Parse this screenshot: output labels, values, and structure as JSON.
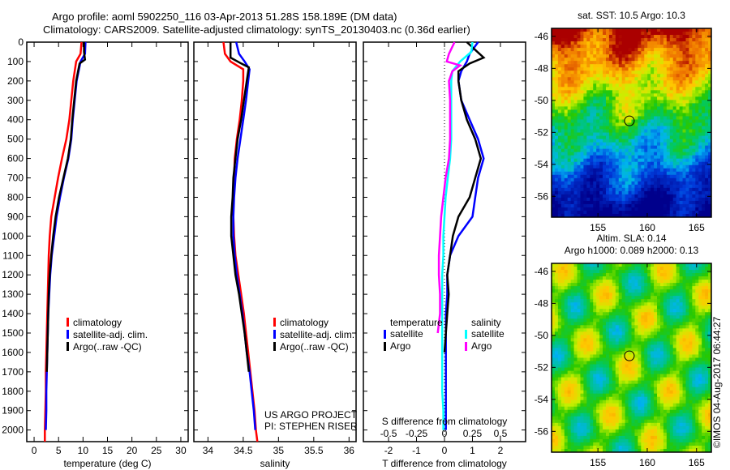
{
  "header": {
    "line1": "Argo profile: aoml 5902250_116 03-Apr-2013 51.28S 158.189E (DM data)",
    "line2": "Climatology: CARS2009. Satellite-adjusted climatology: synTS_20130403.nc (0.36d earlier)"
  },
  "colors": {
    "climatology": "#ff0000",
    "satellite": "#0000ff",
    "argo": "#000000",
    "sal_sat": "#00ffff",
    "sal_argo": "#ff00ff"
  },
  "chart_data": [
    {
      "type": "line",
      "name": "temperature-profile",
      "xlabel": "temperature (deg C)",
      "ylabel": "",
      "xlim": [
        -1.5,
        31.5
      ],
      "ylim": [
        2060,
        0
      ],
      "xticks": [
        0,
        5,
        10,
        15,
        20,
        25,
        30
      ],
      "yticks": [
        0,
        100,
        200,
        300,
        400,
        500,
        600,
        700,
        800,
        900,
        1000,
        1100,
        1200,
        1300,
        1400,
        1500,
        1600,
        1700,
        1800,
        1900,
        2000
      ],
      "legend": [
        "climatology",
        "satellite-adj. clim.",
        "Argo(..raw -QC)"
      ],
      "series": [
        {
          "name": "climatology",
          "color": "#ff0000",
          "depth": [
            0,
            60,
            100,
            200,
            300,
            400,
            500,
            600,
            700,
            800,
            900,
            1000,
            1100,
            1200,
            1300,
            1400,
            1500,
            1600,
            1700,
            1800,
            1900,
            2000,
            2060
          ],
          "values": [
            9.7,
            9.5,
            8.6,
            8.0,
            7.6,
            7.2,
            6.6,
            5.7,
            4.9,
            4.2,
            3.5,
            3.2,
            3.0,
            2.9,
            2.8,
            2.7,
            2.6,
            2.5,
            2.4,
            2.4,
            2.3,
            2.2,
            2.2
          ]
        },
        {
          "name": "satellite-adj. clim.",
          "color": "#0000ff",
          "depth": [
            0,
            60,
            100,
            200,
            300,
            400,
            500,
            600,
            700,
            800,
            900,
            1000,
            1100,
            1200,
            1300,
            1400,
            1500,
            1600,
            1700,
            1800,
            1900,
            2000
          ],
          "values": [
            10.5,
            10.4,
            9.5,
            8.7,
            8.3,
            7.9,
            7.6,
            7.0,
            6.1,
            5.3,
            4.6,
            4.1,
            3.6,
            3.3,
            3.1,
            2.9,
            2.8,
            2.7,
            2.6,
            2.5,
            2.5,
            2.4
          ]
        },
        {
          "name": "Argo(..raw -QC)",
          "color": "#000000",
          "depth": [
            0,
            50,
            90,
            110,
            200,
            300,
            400,
            500,
            600,
            700,
            800,
            900,
            1000,
            1100,
            1200,
            1300,
            1400,
            1500,
            1600,
            1700
          ],
          "values": [
            10.2,
            10.2,
            10.4,
            9.3,
            8.6,
            8.2,
            7.8,
            7.5,
            6.9,
            6.0,
            5.1,
            4.4,
            3.9,
            3.5,
            3.2,
            3.0,
            2.9,
            2.8,
            2.7,
            2.6
          ]
        }
      ]
    },
    {
      "type": "line",
      "name": "salinity-profile",
      "xlabel": "salinity",
      "xlim": [
        33.8,
        36.1
      ],
      "ylim": [
        2060,
        0
      ],
      "xticks": [
        34,
        34.5,
        35,
        35.5,
        36
      ],
      "legend": [
        "climatology",
        "satellite-adj. clim.",
        "Argo(..raw -QC)"
      ],
      "annotations": [
        "US ARGO PROJECT",
        "PI: STEPHEN RISER"
      ],
      "series": [
        {
          "name": "climatology",
          "color": "#ff0000",
          "depth": [
            0,
            60,
            100,
            140,
            200,
            300,
            400,
            500,
            600,
            700,
            800,
            900,
            1000,
            1100,
            1200,
            1300,
            1400,
            1500,
            1600,
            1700,
            1800,
            1900,
            2000,
            2060
          ],
          "values": [
            34.22,
            34.24,
            34.32,
            34.5,
            34.5,
            34.48,
            34.45,
            34.41,
            34.38,
            34.37,
            34.36,
            34.36,
            34.37,
            34.39,
            34.43,
            34.47,
            34.51,
            34.54,
            34.57,
            34.6,
            34.63,
            34.66,
            34.68,
            34.7
          ]
        },
        {
          "name": "satellite-adj. clim.",
          "color": "#0000ff",
          "depth": [
            0,
            60,
            100,
            140,
            200,
            300,
            400,
            500,
            600,
            700,
            800,
            900,
            1000,
            1100,
            1200,
            1300,
            1400,
            1500,
            1600,
            1700,
            1800,
            1900,
            2000
          ],
          "values": [
            34.4,
            34.44,
            34.52,
            34.59,
            34.57,
            34.54,
            34.5,
            34.46,
            34.42,
            34.39,
            34.37,
            34.36,
            34.36,
            34.38,
            34.41,
            34.45,
            34.49,
            34.52,
            34.55,
            34.59,
            34.62,
            34.65,
            34.67
          ]
        },
        {
          "name": "Argo(..raw -QC)",
          "color": "#000000",
          "depth": [
            0,
            60,
            80,
            110,
            130,
            200,
            300,
            400,
            500,
            600,
            700,
            800,
            900,
            1000,
            1100,
            1200,
            1300,
            1400,
            1500,
            1600,
            1700
          ],
          "values": [
            34.32,
            34.32,
            34.32,
            34.47,
            34.58,
            34.55,
            34.51,
            34.47,
            34.42,
            34.39,
            34.36,
            34.35,
            34.33,
            34.33,
            34.36,
            34.39,
            34.44,
            34.48,
            34.52,
            34.55,
            34.58
          ]
        }
      ]
    },
    {
      "type": "line",
      "name": "difference-profile",
      "xlabel": "T difference from climatology",
      "xlabel2": "S difference from climatology",
      "xlim": [
        -2.9,
        2.9
      ],
      "ylim": [
        2060,
        0
      ],
      "xticks": [
        -2,
        -1,
        0,
        1,
        2
      ],
      "xticks2_values": [
        -0.5,
        -0.25,
        0,
        0.25,
        0.5
      ],
      "xticks2_positions_T": [
        -2,
        -1,
        0,
        1,
        2
      ],
      "legend_temperature": {
        "title": "temperature",
        "items": [
          "satellite",
          "Argo"
        ]
      },
      "legend_salinity": {
        "title": "salinity",
        "items": [
          "satellite",
          "Argo"
        ]
      },
      "series": [
        {
          "name": "temperature satellite",
          "color": "#0000ff",
          "depth": [
            0,
            60,
            100,
            150,
            200,
            300,
            400,
            500,
            600,
            700,
            800,
            900,
            1000,
            1100,
            1200,
            1300,
            1400,
            1500,
            1600,
            1700,
            1800,
            1900,
            2000
          ],
          "values": [
            1.2,
            0.9,
            0.8,
            0.6,
            0.5,
            0.6,
            0.9,
            1.2,
            1.4,
            1.2,
            1.1,
            1.0,
            0.5,
            0.2,
            0.1,
            0.1,
            0.05,
            0.05,
            0.05,
            0.05,
            0.05,
            0.05,
            0.05
          ]
        },
        {
          "name": "temperature Argo",
          "color": "#000000",
          "depth": [
            0,
            40,
            80,
            110,
            150,
            200,
            300,
            400,
            500,
            600,
            700,
            800,
            900,
            1000,
            1100,
            1200,
            1300,
            1400,
            1500,
            1600
          ],
          "values": [
            0.8,
            1.1,
            1.4,
            0.9,
            0.5,
            0.5,
            0.6,
            0.8,
            1.1,
            1.3,
            1.1,
            0.9,
            0.5,
            0.3,
            0.2,
            0.1,
            0.15,
            0.1,
            0.05,
            0.0
          ]
        },
        {
          "name": "salinity satellite",
          "color": "#00ffff",
          "depth": [
            0,
            50,
            100,
            150,
            200,
            300,
            400,
            500,
            600,
            700,
            800,
            900,
            1000,
            1100,
            1200,
            1300,
            1400,
            1500,
            1600,
            1700,
            1800,
            1900,
            2000
          ],
          "values": [
            0.25,
            0.24,
            0.14,
            0.07,
            0.06,
            0.06,
            0.06,
            0.06,
            0.05,
            0.03,
            0.01,
            0.0,
            -0.01,
            -0.01,
            -0.02,
            -0.02,
            -0.02,
            -0.02,
            -0.02,
            -0.02,
            -0.02,
            -0.01,
            -0.01
          ]
        },
        {
          "name": "salinity Argo",
          "color": "#ff00ff",
          "depth": [
            0,
            60,
            100,
            120,
            150,
            200,
            300,
            400,
            500,
            600,
            700,
            800,
            900,
            1000,
            1100,
            1200,
            1300,
            1400,
            1500
          ],
          "values": [
            0.09,
            0.04,
            0.02,
            0.14,
            0.07,
            0.04,
            0.05,
            0.05,
            0.05,
            0.04,
            0.01,
            -0.01,
            -0.03,
            -0.04,
            -0.05,
            -0.05,
            -0.04,
            -0.04,
            -0.06
          ]
        }
      ]
    },
    {
      "type": "heatmap",
      "name": "sst-map",
      "title": "sat. SST: 10.5 Argo: 10.3",
      "xlim": [
        150.3,
        166.5
      ],
      "ylim": [
        -57.3,
        -45.5
      ],
      "xticks": [
        155,
        160,
        165
      ],
      "yticks": [
        -46,
        -48,
        -50,
        -52,
        -54,
        -56
      ],
      "marker": {
        "lon": 158.189,
        "lat": -51.28
      }
    },
    {
      "type": "heatmap",
      "name": "sla-map",
      "title_line1": "Altim. SLA: 0.14",
      "title_line2": "Argo h1000: 0.089 h2000: 0.13",
      "xlim": [
        150.3,
        166.5
      ],
      "ylim": [
        -57.3,
        -45.5
      ],
      "xticks": [
        155,
        160,
        165
      ],
      "yticks": [
        -46,
        -48,
        -50,
        -52,
        -54,
        -56
      ],
      "marker": {
        "lon": 158.189,
        "lat": -51.28
      }
    }
  ],
  "credit": "©IMOS 04-Aug-2017 06:44:27"
}
